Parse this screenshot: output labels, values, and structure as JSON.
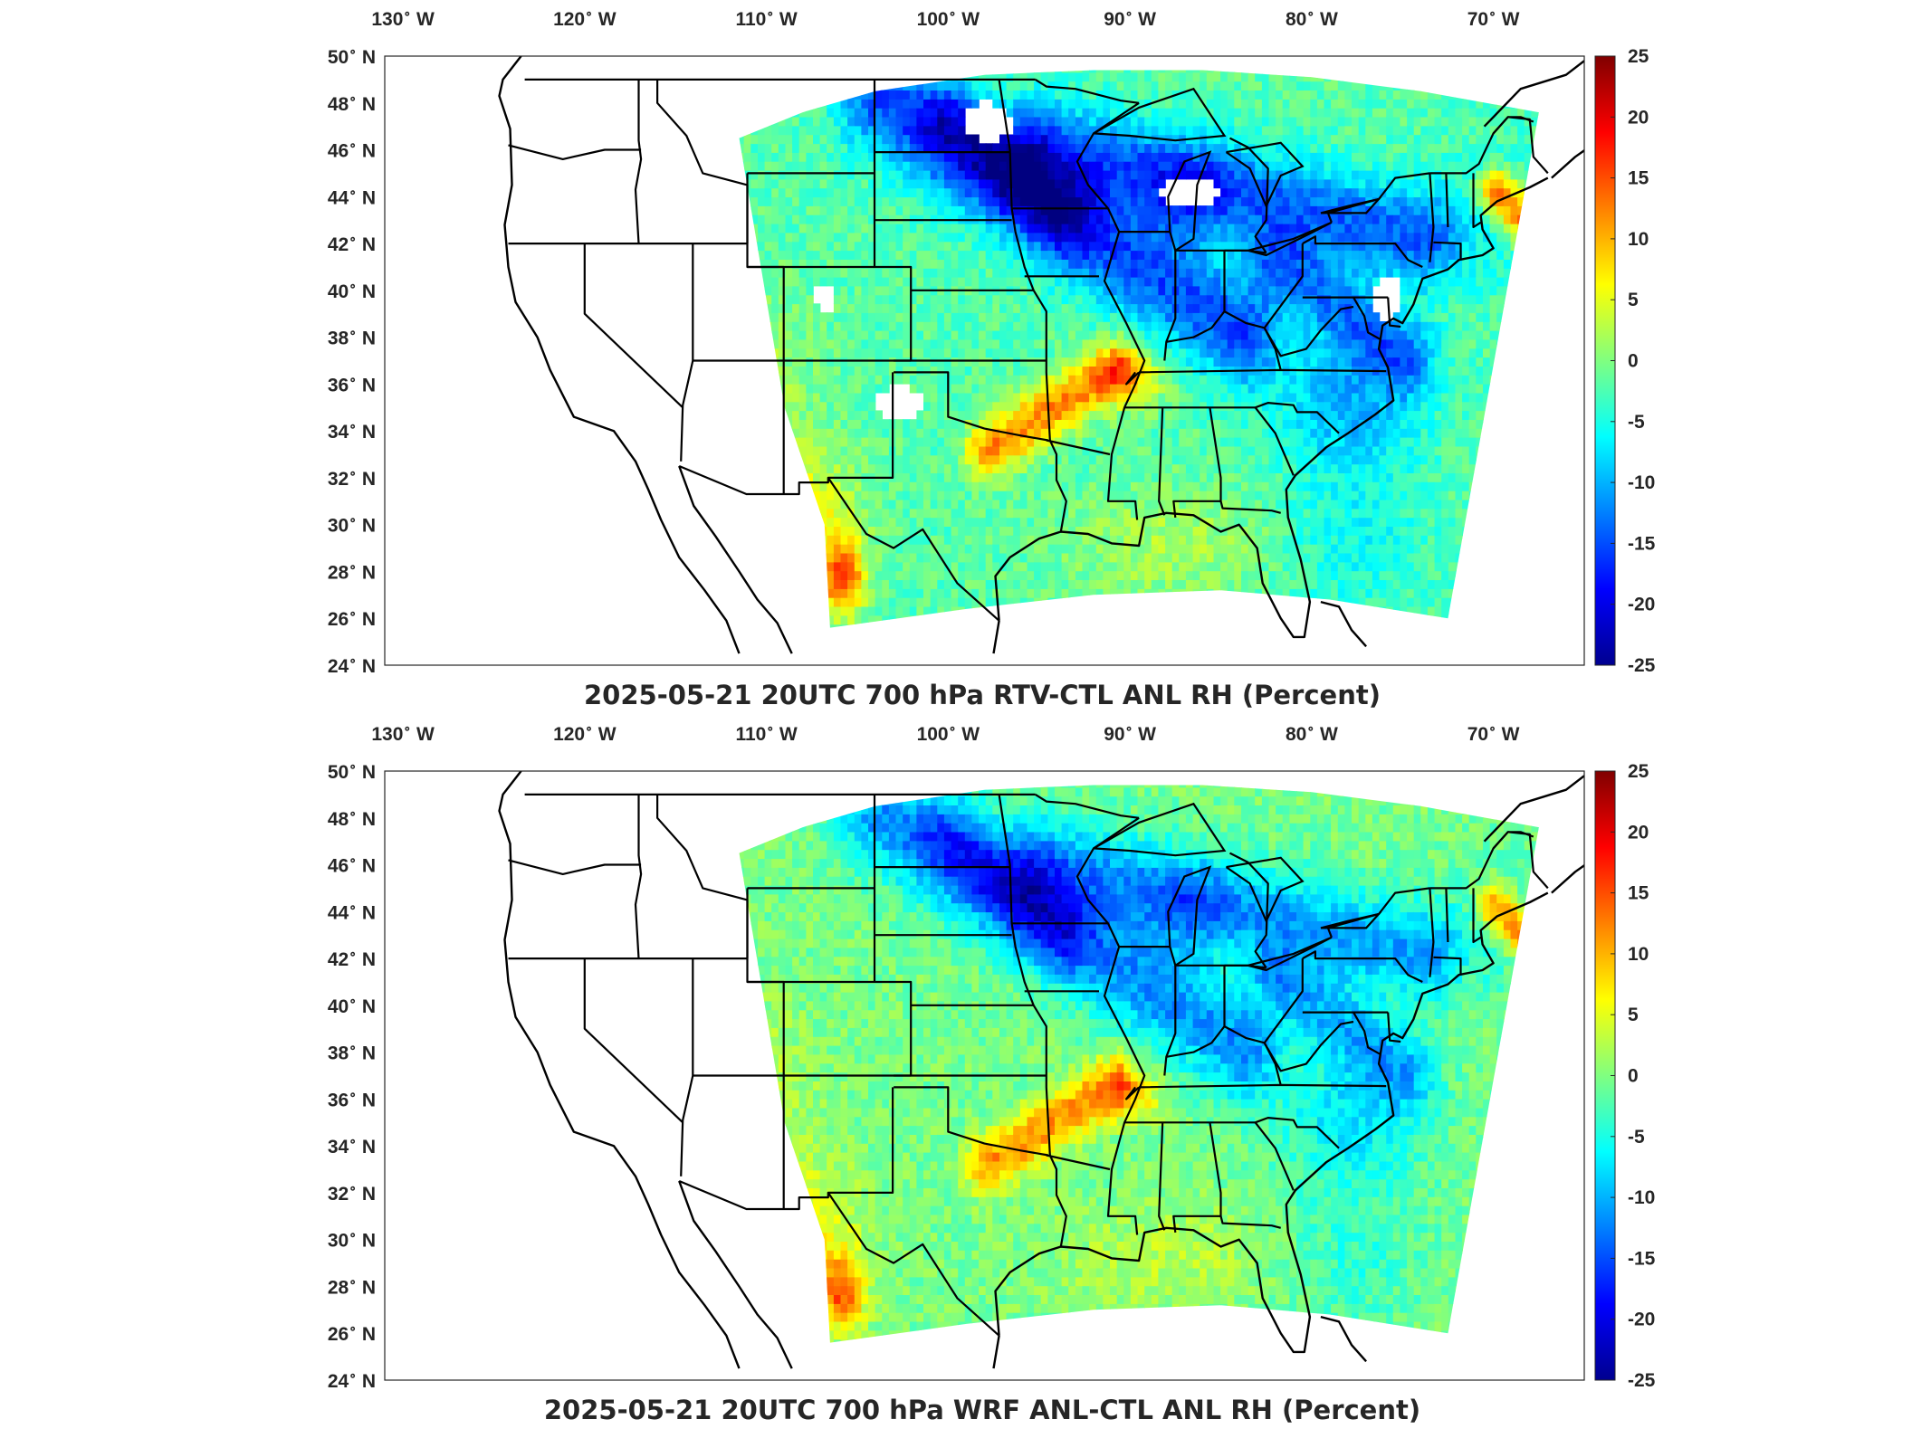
{
  "panels": [
    {
      "title": "2025-05-21 20UTC 700 hPa RTV-CTL ANL RH (Percent)",
      "variant": "rtv"
    },
    {
      "title": "2025-05-21 20UTC 700 hPa WRF ANL-CTL ANL RH (Percent)",
      "variant": "wrf"
    }
  ],
  "map": {
    "lon_labels": [
      {
        "text": "130",
        "unit": " W",
        "lon": -130
      },
      {
        "text": "120",
        "unit": " W",
        "lon": -120
      },
      {
        "text": "110",
        "unit": " W",
        "lon": -110
      },
      {
        "text": "100",
        "unit": " W",
        "lon": -100
      },
      {
        "text": "90",
        "unit": " W",
        "lon": -90
      },
      {
        "text": "80",
        "unit": " W",
        "lon": -80
      },
      {
        "text": "70",
        "unit": " W",
        "lon": -70
      }
    ],
    "lat_labels": [
      {
        "text": "50",
        "unit": " N",
        "lat": 50
      },
      {
        "text": "48",
        "unit": " N",
        "lat": 48
      },
      {
        "text": "46",
        "unit": " N",
        "lat": 46
      },
      {
        "text": "44",
        "unit": " N",
        "lat": 44
      },
      {
        "text": "42",
        "unit": " N",
        "lat": 42
      },
      {
        "text": "40",
        "unit": " N",
        "lat": 40
      },
      {
        "text": "38",
        "unit": " N",
        "lat": 38
      },
      {
        "text": "36",
        "unit": " N",
        "lat": 36
      },
      {
        "text": "34",
        "unit": " N",
        "lat": 34
      },
      {
        "text": "32",
        "unit": " N",
        "lat": 32
      },
      {
        "text": "30",
        "unit": " N",
        "lat": 30
      },
      {
        "text": "28",
        "unit": " N",
        "lat": 28
      },
      {
        "text": "26",
        "unit": " N",
        "lat": 26
      },
      {
        "text": "24",
        "unit": " N",
        "lat": 24
      }
    ],
    "extent": {
      "lon": [
        -131,
        -65
      ],
      "lat": [
        24,
        50
      ]
    }
  },
  "colorbar": {
    "ticks": [
      "25",
      "20",
      "15",
      "10",
      "5",
      "0",
      "-5",
      "-10",
      "-15",
      "-20",
      "-25"
    ],
    "range": [
      -25,
      25
    ],
    "colormap": "jet",
    "colors": [
      "#00008f",
      "#0000ff",
      "#0080ff",
      "#00ffff",
      "#80ff80",
      "#ffff00",
      "#ff8000",
      "#ff0000",
      "#800000"
    ]
  }
}
